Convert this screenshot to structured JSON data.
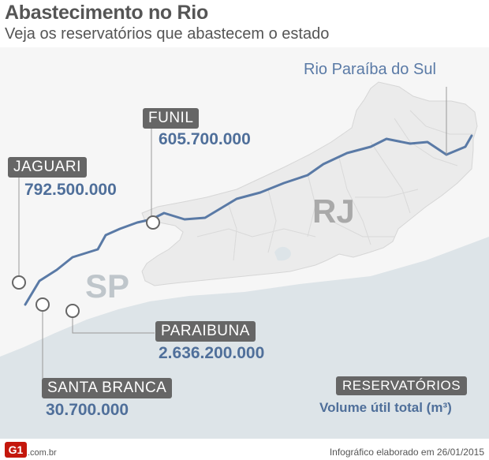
{
  "header": {
    "title": "Abastecimento no Rio",
    "subtitle": "Veja os reservatórios que abastecem o estado"
  },
  "map": {
    "river_label": "Rio Paraíba do Sul",
    "states": {
      "rj": "RJ",
      "sp": "SP"
    },
    "colors": {
      "sea": "#dde4e8",
      "rj_land": "#ebebeb",
      "sp_land": "#f6f6f6",
      "river": "#5a7aa6",
      "border": "#d6d6d6"
    }
  },
  "reservoirs": [
    {
      "name": "FUNIL",
      "volume": "605.700.000"
    },
    {
      "name": "JAGUARI",
      "volume": "792.500.000"
    },
    {
      "name": "PARAIBUNA",
      "volume": "2.636.200.000"
    },
    {
      "name": "SANTA BRANCA",
      "volume": "30.700.000"
    }
  ],
  "legend": {
    "label": "RESERVATÓRIOS",
    "sub": "Volume útil total (m³)"
  },
  "footer": {
    "logo_text": "G1",
    "domain": ".com.br",
    "credit": "Infográfico elaborado em 26/01/2015"
  }
}
